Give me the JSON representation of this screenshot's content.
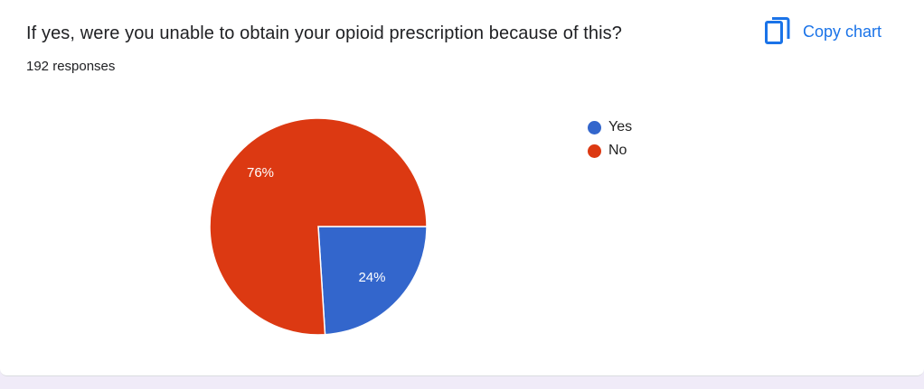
{
  "header": {
    "title": "If yes, were you unable to obtain your opioid prescription because of this?",
    "responses": "192 responses",
    "copy_label": "Copy chart",
    "copy_icon": "copy-icon"
  },
  "colors": {
    "accent": "#1a73e8",
    "yes": "#3366cc",
    "no": "#dc3912"
  },
  "chart_data": {
    "type": "pie",
    "title": "",
    "categories": [
      "Yes",
      "No"
    ],
    "values": [
      24,
      76
    ],
    "labels": [
      "24%",
      "76%"
    ],
    "colors": [
      "#3366cc",
      "#dc3912"
    ],
    "legend": "right"
  }
}
